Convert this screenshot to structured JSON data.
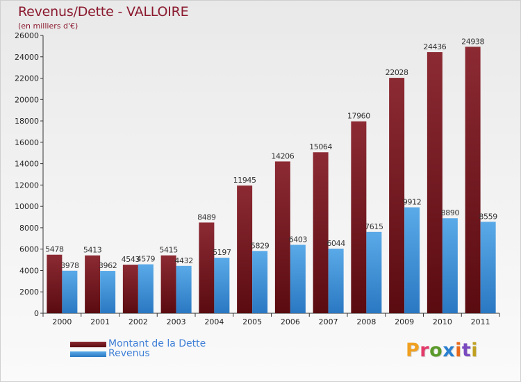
{
  "title": "Revenus/Dette - VALLOIRE",
  "subtitle": "(en milliers d'€)",
  "brand": "Proxiti",
  "colors": {
    "debt": "#6e1018",
    "revenue": "#3f8fd8",
    "title": "#8b1a2f",
    "legend_text": "#3f7fd6"
  },
  "chart_data": {
    "type": "bar",
    "title": "Revenus/Dette - VALLOIRE",
    "subtitle": "(en milliers d'€)",
    "categories": [
      "2000",
      "2001",
      "2002",
      "2003",
      "2004",
      "2005",
      "2006",
      "2007",
      "2008",
      "2009",
      "2010",
      "2011"
    ],
    "series": [
      {
        "name": "Montant de la Dette",
        "values": [
          5478,
          5413,
          4543,
          5415,
          8489,
          11945,
          14206,
          15064,
          17960,
          22028,
          24436,
          24938
        ]
      },
      {
        "name": "Revenus",
        "values": [
          3978,
          3962,
          4579,
          4432,
          5197,
          5829,
          6403,
          6044,
          7615,
          9912,
          8890,
          8559
        ]
      }
    ],
    "ylim": [
      0,
      26000
    ],
    "yticks": [
      0,
      2000,
      4000,
      6000,
      8000,
      10000,
      12000,
      14000,
      16000,
      18000,
      20000,
      22000,
      24000,
      26000
    ],
    "grid": false,
    "legend": "bottom-left"
  }
}
